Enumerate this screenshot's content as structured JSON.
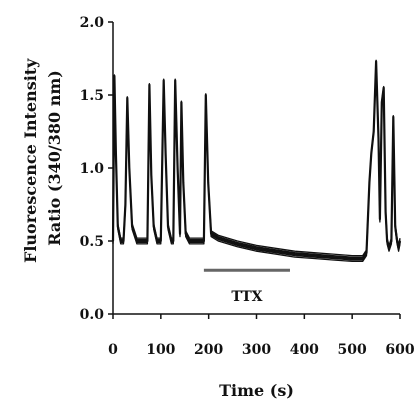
{
  "chart_data": {
    "type": "line",
    "title": "",
    "xlabel": "Time (s)",
    "ylabel_line1": "Fluorescence Intensity",
    "ylabel_line2": "Ratio (340/380 nm)",
    "xlim": [
      0,
      600
    ],
    "ylim": [
      0.0,
      2.0
    ],
    "xticks": [
      0,
      100,
      200,
      300,
      400,
      500,
      600
    ],
    "yticks": [
      "0.0",
      "0.5",
      "1.0",
      "1.5",
      "2.0"
    ],
    "grid": false,
    "legend": "none",
    "line_color": "#111111",
    "annotations": [
      {
        "label": "TTX",
        "x_start": 190,
        "x_end": 370,
        "y": 0.3
      }
    ],
    "series": [
      {
        "x": [
          0,
          3,
          6,
          10,
          16,
          22,
          26,
          30,
          34,
          40,
          50,
          62,
          72,
          76,
          80,
          85,
          92,
          100,
          106,
          110,
          115,
          122,
          126,
          130,
          135,
          140,
          143,
          147,
          152,
          160,
          172,
          185,
          190,
          194,
          199,
          205,
          220,
          260,
          300,
          340,
          380,
          420,
          460,
          500,
          522,
          530,
          536,
          540,
          545,
          550,
          555,
          558,
          562,
          566,
          570,
          573,
          577,
          582,
          586,
          590,
          594,
          597,
          600
        ],
        "y": [
          0.5,
          1.63,
          1.1,
          0.6,
          0.5,
          0.5,
          0.75,
          1.48,
          1.0,
          0.6,
          0.5,
          0.5,
          0.5,
          1.57,
          0.95,
          0.6,
          0.5,
          0.5,
          1.6,
          1.1,
          0.6,
          0.5,
          0.5,
          1.6,
          1.0,
          0.55,
          1.45,
          0.9,
          0.55,
          0.5,
          0.5,
          0.5,
          0.5,
          1.5,
          0.9,
          0.55,
          0.52,
          0.48,
          0.45,
          0.43,
          0.41,
          0.4,
          0.39,
          0.38,
          0.38,
          0.42,
          0.9,
          1.1,
          1.25,
          1.73,
          1.2,
          0.65,
          1.45,
          1.55,
          0.7,
          0.5,
          0.45,
          0.5,
          1.35,
          0.6,
          0.5,
          0.45,
          0.5
        ]
      }
    ]
  }
}
